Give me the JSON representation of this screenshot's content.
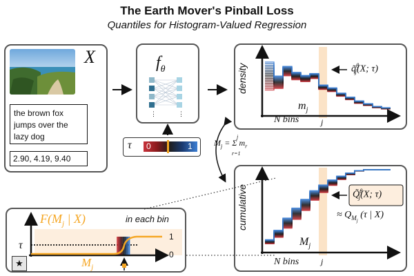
{
  "title": "The Earth Mover's Pinball Loss",
  "subtitle": "Quantiles for Histogram-Valued Regression",
  "input": {
    "variable": "X",
    "text_sample": "the brown fox jumps over the lazy dog",
    "numeric_sample": "2.90, 4.19, 9.40",
    "photo": "coastal-landscape-photo"
  },
  "model": {
    "label": "f",
    "label_sub": "θ"
  },
  "tau_bar": {
    "symbol": "τ",
    "low_label": "0",
    "high_label": "1",
    "highlight_value": 0.45
  },
  "density": {
    "ylabel": "density",
    "xlabel": "N bins",
    "j_label": "j",
    "m_label": "m",
    "m_sub": "j",
    "estimate_label": "q̃",
    "estimate_sup": "θ",
    "estimate_sub": "j",
    "estimate_args": "(X; τ)"
  },
  "mass_eq": {
    "lhs": "M",
    "lhs_sub": "j",
    "rhs": "= Σ m",
    "rhs_sub": "r",
    "sum_top": "j",
    "sum_bottom": "r=1"
  },
  "cumulative": {
    "ylabel": "cumulative",
    "xlabel": "N bins",
    "j_label": "j",
    "M_label": "M",
    "M_sub": "j",
    "estimate_label": "Q̃",
    "estimate_sup": "θ",
    "estimate_sub": "j",
    "estimate_args": "(X; τ)",
    "approx_label": "≈ Q",
    "approx_sub": "M",
    "approx_sub2": "j",
    "approx_args": "(τ | X)"
  },
  "inset": {
    "function_label": "F(M",
    "function_sub": "j",
    "function_args": " | X)",
    "note": "in each bin",
    "tau_axis": "τ",
    "x_label": "M",
    "x_sub": "j",
    "tick_top": "1",
    "tick_bottom": "0",
    "corner_symbol": "★"
  },
  "colors": {
    "accent_orange": "#f5a623",
    "quantile_low": "#c8323a",
    "quantile_mid": "#1e1c1c",
    "quantile_high": "#3c7fd4",
    "band": "#fbe3c7"
  }
}
